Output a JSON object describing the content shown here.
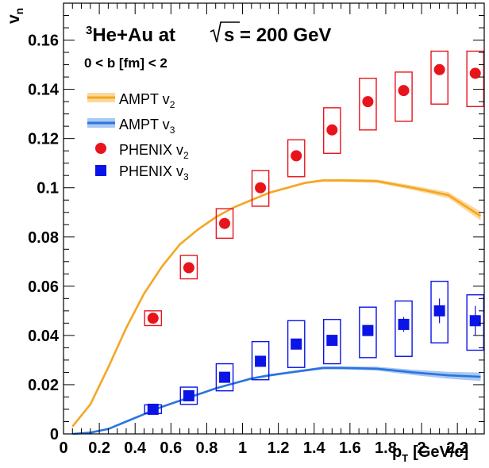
{
  "chart_data": {
    "type": "scatter",
    "title_main": "He+Au at",
    "title_iso": "3",
    "title_sqrt": "s = 200 GeV",
    "subtitle": "0 < b [fm] < 2",
    "xlabel": "p",
    "xlabel_sub": "T",
    "xlabel_unit": "[GeV/c]",
    "ylabel": "v",
    "ylabel_sub": "n",
    "xlim": [
      0,
      2.35
    ],
    "ylim": [
      0,
      0.175
    ],
    "x_ticks": [
      "0",
      "0.2",
      "0.4",
      "0.6",
      "0.8",
      "1",
      "1.2",
      "1.4",
      "1.6",
      "1.8",
      "2",
      "2.2"
    ],
    "y_ticks": [
      "0",
      "0.02",
      "0.04",
      "0.06",
      "0.08",
      "0.1",
      "0.12",
      "0.14",
      "0.16"
    ],
    "legend_placement": "top-left",
    "colors": {
      "ampt_v2": "#f5a623",
      "ampt_v2_band": "#fbd89a",
      "ampt_v3": "#2a74e0",
      "ampt_v3_band": "#a9c8f2",
      "phenix_v2": "#e8141c",
      "phenix_v3": "#0a14e6"
    },
    "series": [
      {
        "name": "AMPT v",
        "name_sub": "2",
        "kind": "band",
        "x": [
          0.05,
          0.15,
          0.25,
          0.35,
          0.45,
          0.55,
          0.65,
          0.75,
          0.85,
          0.95,
          1.05,
          1.15,
          1.25,
          1.35,
          1.45,
          1.55,
          1.75,
          1.95,
          2.15,
          2.33
        ],
        "y": [
          0.003,
          0.012,
          0.027,
          0.043,
          0.057,
          0.068,
          0.077,
          0.083,
          0.088,
          0.092,
          0.095,
          0.098,
          0.1,
          0.102,
          0.103,
          0.103,
          0.1027,
          0.1,
          0.097,
          0.0885
        ],
        "err": [
          0.0002,
          0.0002,
          0.0003,
          0.0003,
          0.0003,
          0.0003,
          0.0003,
          0.0004,
          0.0004,
          0.0004,
          0.0004,
          0.0004,
          0.0005,
          0.0005,
          0.0005,
          0.0006,
          0.0007,
          0.0009,
          0.0012,
          0.0018
        ]
      },
      {
        "name": "AMPT v",
        "name_sub": "3",
        "kind": "band",
        "x": [
          0.05,
          0.15,
          0.25,
          0.35,
          0.45,
          0.55,
          0.65,
          0.75,
          0.85,
          0.95,
          1.05,
          1.15,
          1.25,
          1.35,
          1.45,
          1.55,
          1.75,
          1.95,
          2.15,
          2.33
        ],
        "y": [
          0.0,
          0.0005,
          0.002,
          0.005,
          0.008,
          0.011,
          0.0135,
          0.016,
          0.0185,
          0.0205,
          0.0225,
          0.0238,
          0.0248,
          0.0258,
          0.0268,
          0.0268,
          0.0265,
          0.025,
          0.0238,
          0.0232
        ],
        "err": [
          0.0002,
          0.0002,
          0.0002,
          0.0003,
          0.0003,
          0.0003,
          0.0003,
          0.0003,
          0.0004,
          0.0004,
          0.0004,
          0.0005,
          0.0005,
          0.0005,
          0.0006,
          0.0006,
          0.0008,
          0.0011,
          0.0014,
          0.0017
        ]
      },
      {
        "name": "PHENIX v",
        "name_sub": "2",
        "kind": "points",
        "marker": "circle",
        "x": [
          0.5,
          0.7,
          0.9,
          1.1,
          1.3,
          1.5,
          1.7,
          1.9,
          2.1,
          2.3
        ],
        "y": [
          0.047,
          0.0675,
          0.0855,
          0.1,
          0.113,
          0.1235,
          0.135,
          0.1395,
          0.148,
          0.1465
        ],
        "sys_lo": [
          0.044,
          0.063,
          0.0795,
          0.0925,
          0.1045,
          0.114,
          0.1235,
          0.127,
          0.134,
          0.133
        ],
        "sys_hi": [
          0.05,
          0.0725,
          0.0915,
          0.107,
          0.1195,
          0.1325,
          0.1445,
          0.147,
          0.1555,
          0.1555
        ],
        "stat": [
          0.0,
          0.0,
          0.0,
          0.0,
          0.0,
          0.0,
          0.0,
          0.0,
          0.0,
          0.0
        ]
      },
      {
        "name": "PHENIX v",
        "name_sub": "3",
        "kind": "points",
        "marker": "square",
        "x": [
          0.5,
          0.7,
          0.9,
          1.1,
          1.3,
          1.5,
          1.7,
          1.9,
          2.1,
          2.3
        ],
        "y": [
          0.01,
          0.0155,
          0.023,
          0.0295,
          0.0365,
          0.038,
          0.042,
          0.0445,
          0.05,
          0.046
        ],
        "sys_lo": [
          0.0083,
          0.012,
          0.0175,
          0.022,
          0.027,
          0.0285,
          0.031,
          0.0315,
          0.037,
          0.034
        ],
        "sys_hi": [
          0.0118,
          0.019,
          0.0285,
          0.0375,
          0.046,
          0.0465,
          0.0515,
          0.054,
          0.062,
          0.0565
        ],
        "stat": [
          0.0,
          0.0,
          0.0,
          0.0,
          0.0,
          0.0,
          0.0015,
          0.003,
          0.005,
          0.006
        ]
      }
    ]
  }
}
